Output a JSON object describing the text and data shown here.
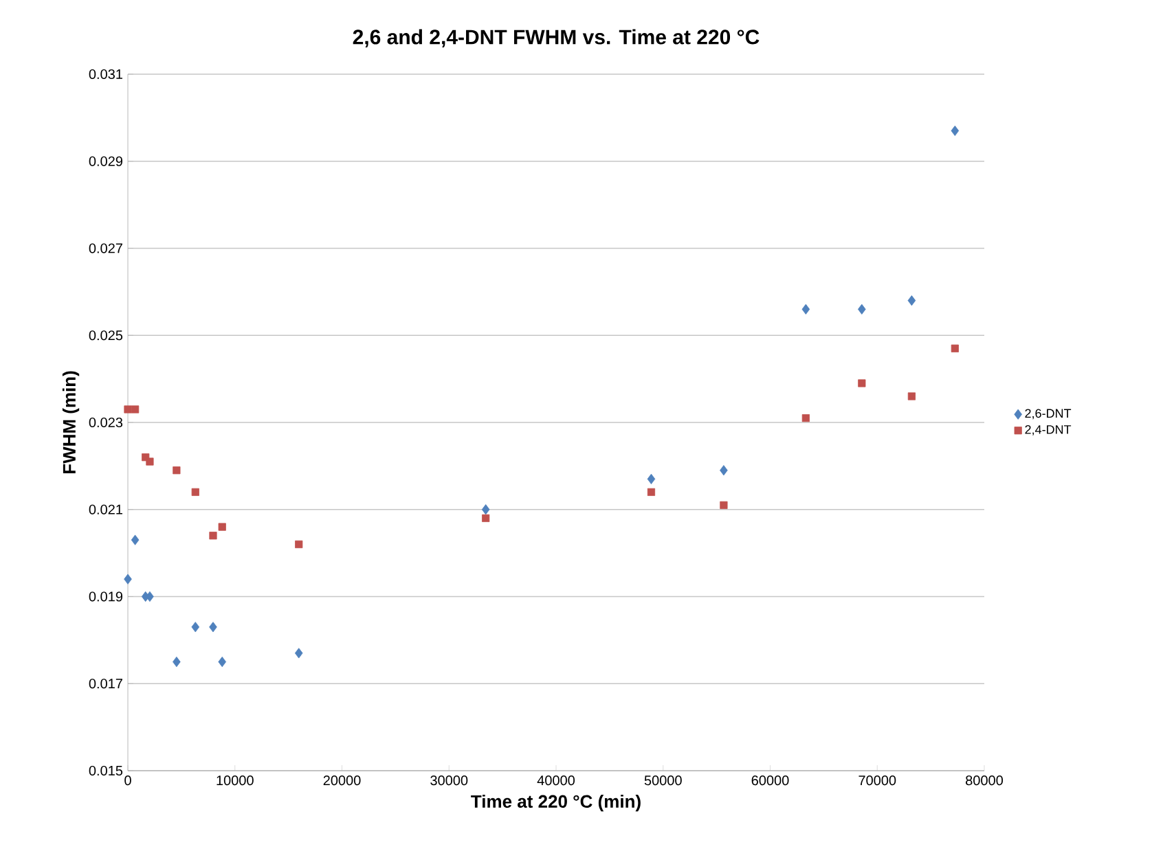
{
  "chart_data": {
    "type": "scatter",
    "title": "2,6 and 2,4-DNT FWHM vs. Time at 220 °C",
    "xlabel": "Time at 220 °C (min)",
    "ylabel": "FWHM (min)",
    "xlim": [
      0,
      80000
    ],
    "xticks": [
      0,
      10000,
      20000,
      30000,
      40000,
      50000,
      60000,
      70000,
      80000
    ],
    "ylim": [
      0.015,
      0.031
    ],
    "yticks": [
      0.015,
      0.017,
      0.019,
      0.021,
      0.023,
      0.025,
      0.027,
      0.029,
      0.031
    ],
    "grid": "y",
    "legend": "right",
    "series": [
      {
        "name": "2,6-DNT",
        "color": "#4f81bd",
        "marker": "diamond",
        "x": [
          0,
          680,
          1650,
          2050,
          4550,
          6310,
          7960,
          8810,
          15970,
          33430,
          48890,
          55660,
          63330,
          68560,
          73220,
          77260
        ],
        "values": [
          0.0194,
          0.0203,
          0.019,
          0.019,
          0.0175,
          0.0183,
          0.0183,
          0.0175,
          0.0177,
          0.021,
          0.0217,
          0.0219,
          0.0256,
          0.0256,
          0.0258,
          0.0297
        ]
      },
      {
        "name": "2,4-DNT",
        "color": "#c0504d",
        "marker": "square",
        "x": [
          0,
          680,
          1650,
          2050,
          4550,
          6310,
          7960,
          8810,
          15970,
          33430,
          48890,
          55660,
          63330,
          68560,
          73220,
          77260
        ],
        "values": [
          0.0233,
          0.0233,
          0.0222,
          0.0221,
          0.0219,
          0.0214,
          0.0204,
          0.0206,
          0.0202,
          0.0208,
          0.0214,
          0.0211,
          0.0231,
          0.0239,
          0.0236,
          0.0247
        ]
      }
    ]
  }
}
